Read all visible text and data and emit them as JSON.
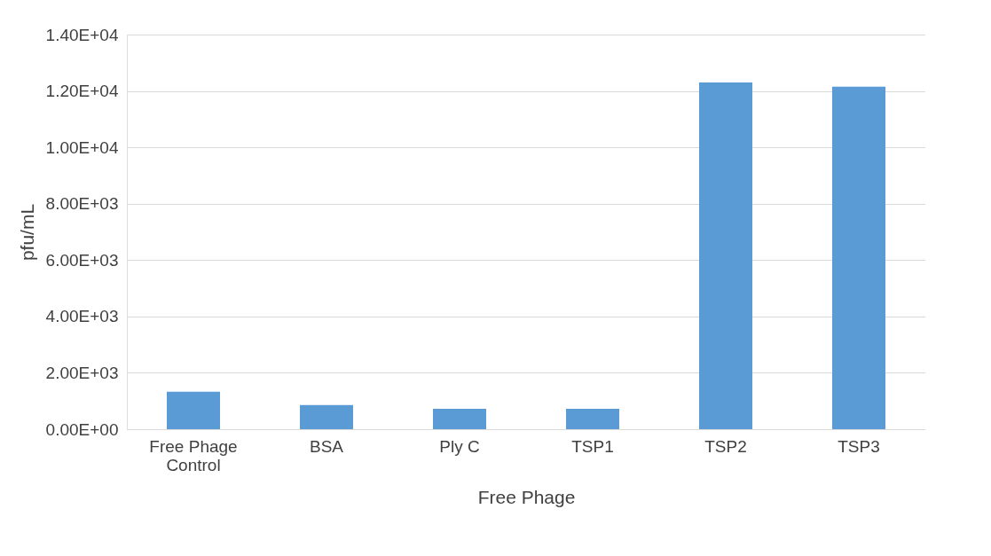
{
  "chart_data": {
    "type": "bar",
    "xlabel": "Free Phage",
    "ylabel": "pfu/mL",
    "categories": [
      "Free Phage Control",
      "BSA",
      "Ply C",
      "TSP1",
      "TSP2",
      "TSP3"
    ],
    "values": [
      1330,
      860,
      720,
      720,
      12300,
      12150
    ],
    "color": "#5b9bd5",
    "ylim": [
      0,
      14000
    ],
    "yticks": [
      {
        "value": 0,
        "label": "0.00E+00"
      },
      {
        "value": 2000,
        "label": "2.00E+03"
      },
      {
        "value": 4000,
        "label": "4.00E+03"
      },
      {
        "value": 6000,
        "label": "6.00E+03"
      },
      {
        "value": 8000,
        "label": "8.00E+03"
      },
      {
        "value": 10000,
        "label": "1.00E+04"
      },
      {
        "value": 12000,
        "label": "1.20E+04"
      },
      {
        "value": 14000,
        "label": "1.40E+04"
      }
    ],
    "grid": "y"
  }
}
